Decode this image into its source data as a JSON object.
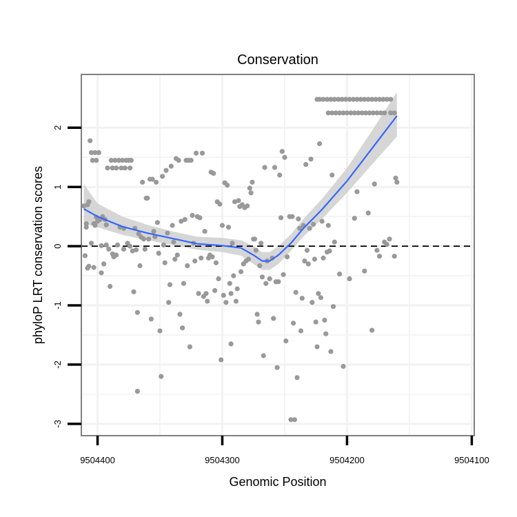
{
  "chart_data": {
    "type": "scatter",
    "title": "Conservation",
    "xlabel": "Genomic Position",
    "ylabel": "phyloP LRT conservation scores",
    "x_axis": {
      "reversed": true,
      "lim": [
        9504413,
        9504098
      ],
      "ticks": [
        9504400,
        9504300,
        9504200,
        9504100
      ]
    },
    "y_axis": {
      "lim": [
        -3.2,
        2.9
      ],
      "ticks": [
        -3,
        -2,
        -1,
        0,
        1,
        2
      ]
    },
    "grid": true,
    "reference_line": {
      "y": 0,
      "style": "dashed"
    },
    "colors": {
      "points": "#999999",
      "smooth_line": "#3366FF",
      "ribbon": "#CCCCCC",
      "panel_border": "#7F7F7F",
      "grid": "#F2F2F2"
    },
    "series": [
      {
        "kind": "points",
        "points": [
          [
            9504411,
            0.68
          ],
          [
            9504410,
            -0.16
          ],
          [
            9504409,
            0.32
          ],
          [
            9504409,
            0.38
          ],
          [
            9504408,
            0.7
          ],
          [
            9504408,
            -0.37
          ],
          [
            9504407,
            0.75
          ],
          [
            9504407,
            -0.34
          ],
          [
            9504406,
            1.78
          ],
          [
            9504405,
            1.58
          ],
          [
            9504405,
            0.05
          ],
          [
            9504404,
            1.45
          ],
          [
            9504403,
            0.38
          ],
          [
            9504403,
            -0.36
          ],
          [
            9504402,
            1.58
          ],
          [
            9504402,
            0.35
          ],
          [
            9504401,
            1.45
          ],
          [
            9504401,
            0.49
          ],
          [
            9504400,
            0.42
          ],
          [
            9504399,
            1.58
          ],
          [
            9504398,
            0.45
          ],
          [
            9504397,
            0.01
          ],
          [
            9504397,
            -0.45
          ],
          [
            9504396,
            0.5
          ],
          [
            9504395,
            -0.3
          ],
          [
            9504394,
            0.45
          ],
          [
            9504393,
            0.36
          ],
          [
            9504393,
            0.02
          ],
          [
            9504392,
            1.32
          ],
          [
            9504391,
            -0.05
          ],
          [
            9504390,
            -0.68
          ],
          [
            9504389,
            1.45
          ],
          [
            9504388,
            1.32
          ],
          [
            9504388,
            -0.13
          ],
          [
            9504387,
            -0.18
          ],
          [
            9504386,
            1.45
          ],
          [
            9504385,
            1.32
          ],
          [
            9504385,
            -0.15
          ],
          [
            9504384,
            0.02
          ],
          [
            9504383,
            1.45
          ],
          [
            9504382,
            0.32
          ],
          [
            9504381,
            1.32
          ],
          [
            9504380,
            1.45
          ],
          [
            9504379,
            0.3
          ],
          [
            9504379,
            -0.05
          ],
          [
            9504378,
            1.32
          ],
          [
            9504377,
            1.45
          ],
          [
            9504376,
            0.05
          ],
          [
            9504375,
            1.45
          ],
          [
            9504374,
            1.32
          ],
          [
            9504374,
            0.0
          ],
          [
            9504373,
            1.45
          ],
          [
            9504372,
            -0.08
          ],
          [
            9504371,
            -0.77
          ],
          [
            9504370,
            0.3
          ],
          [
            9504369,
            -0.06
          ],
          [
            9504368,
            -1.12
          ],
          [
            9504368,
            -2.45
          ],
          [
            9504367,
            0.21
          ],
          [
            9504366,
            -0.33
          ],
          [
            9504365,
            0.15
          ],
          [
            9504364,
            1.08
          ],
          [
            9504363,
            0.12
          ],
          [
            9504362,
            -0.05
          ],
          [
            9504361,
            0.81
          ],
          [
            9504360,
            0.81
          ],
          [
            9504359,
            0.12
          ],
          [
            9504358,
            1.13
          ],
          [
            9504357,
            -1.23
          ],
          [
            9504356,
            1.13
          ],
          [
            9504355,
            0.25
          ],
          [
            9504354,
            0.16
          ],
          [
            9504353,
            1.08
          ],
          [
            9504352,
            0.4
          ],
          [
            9504351,
            -0.12
          ],
          [
            9504350,
            -1.43
          ],
          [
            9504349,
            -2.2
          ],
          [
            9504348,
            1.18
          ],
          [
            9504347,
            0.02
          ],
          [
            9504346,
            -0.28
          ],
          [
            9504345,
            1.28
          ],
          [
            9504344,
            0.22
          ],
          [
            9504343,
            -0.95
          ],
          [
            9504342,
            -0.65
          ],
          [
            9504341,
            1.35
          ],
          [
            9504340,
            0.35
          ],
          [
            9504339,
            0.07
          ],
          [
            9504338,
            -0.22
          ],
          [
            9504337,
            1.48
          ],
          [
            9504336,
            -0.15
          ],
          [
            9504335,
            1.45
          ],
          [
            9504334,
            -1.15
          ],
          [
            9504333,
            0.42
          ],
          [
            9504332,
            -1.38
          ],
          [
            9504331,
            -0.63
          ],
          [
            9504330,
            0.45
          ],
          [
            9504329,
            1.45
          ],
          [
            9504328,
            -0.33
          ],
          [
            9504327,
            1.45
          ],
          [
            9504326,
            -1.7
          ],
          [
            9504325,
            1.45
          ],
          [
            9504324,
            0.52
          ],
          [
            9504323,
            0.05
          ],
          [
            9504322,
            -0.25
          ],
          [
            9504321,
            1.57
          ],
          [
            9504320,
            0.5
          ],
          [
            9504319,
            -0.8
          ],
          [
            9504318,
            0.48
          ],
          [
            9504317,
            -0.2
          ],
          [
            9504316,
            1.57
          ],
          [
            9504315,
            -0.85
          ],
          [
            9504314,
            0.25
          ],
          [
            9504313,
            -0.8
          ],
          [
            9504312,
            -0.93
          ],
          [
            9504311,
            -0.2
          ],
          [
            9504310,
            -0.15
          ],
          [
            9504309,
            1.25
          ],
          [
            9504308,
            -0.18
          ],
          [
            9504307,
            1.23
          ],
          [
            9504306,
            -0.75
          ],
          [
            9504305,
            -0.28
          ],
          [
            9504304,
            0.75
          ],
          [
            9504303,
            -0.55
          ],
          [
            9504302,
            0.71
          ],
          [
            9504301,
            -1.92
          ],
          [
            9504300,
            0.35
          ],
          [
            9504299,
            -0.83
          ],
          [
            9504298,
            1.07
          ],
          [
            9504297,
            -0.95
          ],
          [
            9504296,
            1.03
          ],
          [
            9504295,
            0.32
          ],
          [
            9504294,
            -0.63
          ],
          [
            9504293,
            -0.8
          ],
          [
            9504293,
            -1.65
          ],
          [
            9504292,
            0.05
          ],
          [
            9504291,
            -0.5
          ],
          [
            9504290,
            0.75
          ],
          [
            9504289,
            -0.93
          ],
          [
            9504288,
            -0.72
          ],
          [
            9504287,
            0.77
          ],
          [
            9504286,
            0.67
          ],
          [
            9504285,
            -0.43
          ],
          [
            9504284,
            0.7
          ],
          [
            9504283,
            -0.3
          ],
          [
            9504282,
            0.65
          ],
          [
            9504281,
            -0.25
          ],
          [
            9504280,
            0.68
          ],
          [
            9504279,
            -0.22
          ],
          [
            9504278,
            0.98
          ],
          [
            9504277,
            0.9
          ],
          [
            9504276,
            1.08
          ],
          [
            9504275,
            0.12
          ],
          [
            9504274,
            0.12
          ],
          [
            9504273,
            -0.07
          ],
          [
            9504272,
            -1.15
          ],
          [
            9504271,
            -1.28
          ],
          [
            9504270,
            -0.33
          ],
          [
            9504269,
            0.05
          ],
          [
            9504268,
            -0.52
          ],
          [
            9504267,
            -1.85
          ],
          [
            9504266,
            1.33
          ],
          [
            9504265,
            -0.63
          ],
          [
            9504264,
            -0.25
          ],
          [
            9504262,
            -0.55
          ],
          [
            9504260,
            -0.2
          ],
          [
            9504259,
            -1.22
          ],
          [
            9504258,
            1.33
          ],
          [
            9504257,
            -0.6
          ],
          [
            9504256,
            -2.05
          ],
          [
            9504255,
            -0.6
          ],
          [
            9504254,
            1.2
          ],
          [
            9504253,
            0.48
          ],
          [
            9504252,
            1.6
          ],
          [
            9504251,
            -0.48
          ],
          [
            9504250,
            1.5
          ],
          [
            9504249,
            -1.6
          ],
          [
            9504248,
            -0.18
          ],
          [
            9504246,
            0.5
          ],
          [
            9504245,
            -2.93
          ],
          [
            9504244,
            0.5
          ],
          [
            9504243,
            -1.3
          ],
          [
            9504242,
            -2.93
          ],
          [
            9504241,
            -0.78
          ],
          [
            9504240,
            -2.22
          ],
          [
            9504239,
            0.46
          ],
          [
            9504238,
            0.3
          ],
          [
            9504237,
            -1.43
          ],
          [
            9504236,
            -0.88
          ],
          [
            9504235,
            0.35
          ],
          [
            9504234,
            -0.25
          ],
          [
            9504233,
            1.38
          ],
          [
            9504232,
            -0.07
          ],
          [
            9504231,
            -0.3
          ],
          [
            9504230,
            0.3
          ],
          [
            9504229,
            1.47
          ],
          [
            9504228,
            -0.95
          ],
          [
            9504227,
            0.37
          ],
          [
            9504226,
            -0.22
          ],
          [
            9504225,
            -1.28
          ],
          [
            9504224,
            -1.7
          ],
          [
            9504223,
            -0.8
          ],
          [
            9504222,
            1.73
          ],
          [
            9504221,
            -0.87
          ],
          [
            9504220,
            0.42
          ],
          [
            9504219,
            -0.2
          ],
          [
            9504218,
            -1.25
          ],
          [
            9504217,
            -1.48
          ],
          [
            9504216,
            -0.1
          ],
          [
            9504215,
            0.35
          ],
          [
            9504214,
            -0.08
          ],
          [
            9504213,
            -1.78
          ],
          [
            9504212,
            1.2
          ],
          [
            9504211,
            -1.02
          ],
          [
            9504210,
            0.07
          ],
          [
            9504206,
            -0.47
          ],
          [
            9504203,
            -2.03
          ],
          [
            9504198,
            -0.55
          ],
          [
            9504194,
            0.47
          ],
          [
            9504192,
            0.92
          ],
          [
            9504186,
            -0.42
          ],
          [
            9504183,
            0.56
          ],
          [
            9504180,
            -1.42
          ],
          [
            9504178,
            1.05
          ],
          [
            9504176,
            -0.07
          ],
          [
            9504174,
            -0.17
          ],
          [
            9504170,
            0.07
          ],
          [
            9504168,
            0.03
          ],
          [
            9504166,
            0.12
          ],
          [
            9504162,
            -0.17
          ],
          [
            9504161,
            1.15
          ],
          [
            9504160,
            1.08
          ],
          [
            9504224,
            2.48
          ],
          [
            9504222,
            2.48
          ],
          [
            9504219,
            2.48
          ],
          [
            9504216,
            2.48
          ],
          [
            9504213,
            2.48
          ],
          [
            9504210,
            2.48
          ],
          [
            9504207,
            2.48
          ],
          [
            9504204,
            2.48
          ],
          [
            9504201,
            2.48
          ],
          [
            9504198,
            2.48
          ],
          [
            9504195,
            2.48
          ],
          [
            9504192,
            2.48
          ],
          [
            9504189,
            2.48
          ],
          [
            9504186,
            2.48
          ],
          [
            9504183,
            2.48
          ],
          [
            9504180,
            2.48
          ],
          [
            9504177,
            2.48
          ],
          [
            9504174,
            2.48
          ],
          [
            9504171,
            2.48
          ],
          [
            9504168,
            2.48
          ],
          [
            9504165,
            2.48
          ],
          [
            9504215,
            2.25
          ],
          [
            9504212,
            2.25
          ],
          [
            9504209,
            2.25
          ],
          [
            9504206,
            2.25
          ],
          [
            9504203,
            2.25
          ],
          [
            9504200,
            2.25
          ],
          [
            9504197,
            2.25
          ],
          [
            9504194,
            2.25
          ],
          [
            9504191,
            2.25
          ],
          [
            9504188,
            2.25
          ],
          [
            9504185,
            2.25
          ],
          [
            9504182,
            2.25
          ],
          [
            9504179,
            2.25
          ],
          [
            9504176,
            2.25
          ],
          [
            9504173,
            2.25
          ],
          [
            9504170,
            2.25
          ],
          [
            9504165,
            2.25
          ],
          [
            9504162,
            2.25
          ]
        ]
      },
      {
        "kind": "smooth",
        "name": "loess",
        "x": [
          9504411,
          9504400,
          9504380,
          9504360,
          9504340,
          9504320,
          9504300,
          9504285,
          9504275,
          9504268,
          9504262,
          9504255,
          9504245,
          9504235,
          9504220,
          9504200,
          9504180,
          9504160
        ],
        "y": [
          0.63,
          0.5,
          0.33,
          0.22,
          0.13,
          0.04,
          0.01,
          -0.03,
          -0.15,
          -0.25,
          -0.25,
          -0.15,
          0.05,
          0.3,
          0.62,
          1.1,
          1.65,
          2.2
        ],
        "lower": [
          0.38,
          0.32,
          0.19,
          0.1,
          0.02,
          -0.06,
          -0.1,
          -0.16,
          -0.3,
          -0.4,
          -0.4,
          -0.3,
          -0.08,
          0.16,
          0.46,
          0.9,
          1.38,
          1.85
        ],
        "upper": [
          1.05,
          0.72,
          0.5,
          0.36,
          0.25,
          0.16,
          0.14,
          0.1,
          0.0,
          -0.1,
          -0.1,
          0.0,
          0.2,
          0.46,
          0.8,
          1.32,
          1.95,
          2.6
        ]
      }
    ]
  }
}
